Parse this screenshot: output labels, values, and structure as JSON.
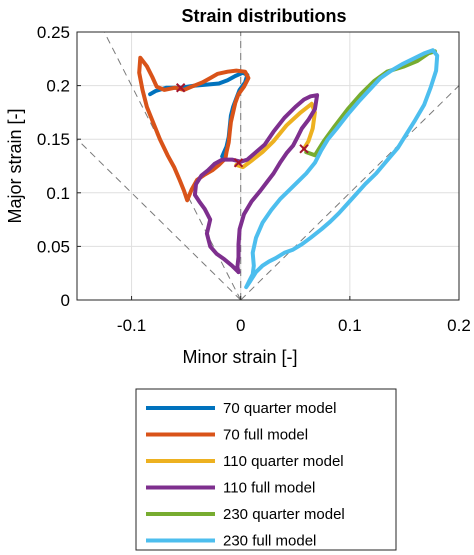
{
  "chart_data": {
    "type": "line",
    "title": "Strain distributions",
    "xlabel": "Minor strain [-]",
    "ylabel": "Major strain [-]",
    "xlim": [
      -0.15,
      0.2
    ],
    "ylim": [
      0,
      0.25
    ],
    "xticks": [
      -0.1,
      0,
      0.1,
      0.2
    ],
    "xtick_labels": [
      "-0.1",
      "0",
      "0.1",
      "0.2"
    ],
    "yticks": [
      0,
      0.05,
      0.1,
      0.15,
      0.2,
      0.25
    ],
    "ytick_labels": [
      "0",
      "0.05",
      "0.1",
      "0.15",
      "0.2",
      "0.25"
    ],
    "grid": true,
    "legend_position": "below",
    "reference_lines": [
      {
        "from": [
          0,
          0
        ],
        "to": [
          -0.125,
          0.25
        ]
      },
      {
        "from": [
          0,
          0
        ],
        "to": [
          -0.15,
          0.15
        ]
      },
      {
        "from": [
          0,
          0
        ],
        "to": [
          0.2,
          0.2
        ]
      },
      {
        "x": 0
      }
    ],
    "markers": [
      {
        "x": -0.055,
        "y": 0.198,
        "symbol": "x",
        "color": "#a2142f"
      },
      {
        "x": -0.002,
        "y": 0.128,
        "symbol": "x",
        "color": "#a2142f"
      },
      {
        "x": 0.058,
        "y": 0.141,
        "symbol": "x",
        "color": "#a2142f"
      }
    ],
    "series": [
      {
        "name": "70 quarter model",
        "color": "#0072bd",
        "points": [
          [
            -0.083,
            0.192
          ],
          [
            -0.078,
            0.195
          ],
          [
            -0.068,
            0.198
          ],
          [
            -0.055,
            0.198
          ],
          [
            -0.042,
            0.2
          ],
          [
            -0.03,
            0.201
          ],
          [
            -0.02,
            0.202
          ],
          [
            -0.012,
            0.205
          ],
          [
            -0.005,
            0.209
          ],
          [
            0.002,
            0.212
          ],
          [
            0.006,
            0.21
          ],
          [
            0.004,
            0.203
          ],
          [
            -0.001,
            0.196
          ],
          [
            -0.004,
            0.188
          ],
          [
            -0.007,
            0.18
          ],
          [
            -0.009,
            0.172
          ],
          [
            -0.01,
            0.162
          ],
          [
            -0.011,
            0.152
          ],
          [
            -0.013,
            0.143
          ],
          [
            -0.017,
            0.134
          ]
        ]
      },
      {
        "name": "70 full model",
        "color": "#d95319",
        "points": [
          [
            -0.014,
            0.132
          ],
          [
            -0.02,
            0.126
          ],
          [
            -0.026,
            0.121
          ],
          [
            -0.033,
            0.117
          ],
          [
            -0.04,
            0.112
          ],
          [
            -0.045,
            0.103
          ],
          [
            -0.049,
            0.093
          ],
          [
            -0.052,
            0.102
          ],
          [
            -0.056,
            0.112
          ],
          [
            -0.061,
            0.124
          ],
          [
            -0.067,
            0.135
          ],
          [
            -0.074,
            0.15
          ],
          [
            -0.08,
            0.165
          ],
          [
            -0.086,
            0.18
          ],
          [
            -0.09,
            0.196
          ],
          [
            -0.093,
            0.212
          ],
          [
            -0.092,
            0.226
          ],
          [
            -0.086,
            0.218
          ],
          [
            -0.081,
            0.208
          ],
          [
            -0.077,
            0.199
          ],
          [
            -0.07,
            0.196
          ],
          [
            -0.06,
            0.198
          ],
          [
            -0.052,
            0.196
          ],
          [
            -0.045,
            0.199
          ],
          [
            -0.035,
            0.203
          ],
          [
            -0.028,
            0.207
          ],
          [
            -0.021,
            0.211
          ],
          [
            -0.012,
            0.213
          ],
          [
            -0.004,
            0.214
          ],
          [
            0.004,
            0.213
          ],
          [
            0.007,
            0.207
          ],
          [
            0.003,
            0.199
          ],
          [
            -0.002,
            0.192
          ],
          [
            -0.005,
            0.184
          ],
          [
            -0.007,
            0.175
          ],
          [
            -0.009,
            0.166
          ],
          [
            -0.01,
            0.157
          ],
          [
            -0.011,
            0.147
          ],
          [
            -0.013,
            0.138
          ],
          [
            -0.014,
            0.132
          ]
        ]
      },
      {
        "name": "110 quarter model",
        "color": "#edb120",
        "points": [
          [
            -0.004,
            0.126
          ],
          [
            0.002,
            0.124
          ],
          [
            0.01,
            0.13
          ],
          [
            0.02,
            0.138
          ],
          [
            0.03,
            0.148
          ],
          [
            0.042,
            0.163
          ],
          [
            0.055,
            0.175
          ],
          [
            0.065,
            0.183
          ],
          [
            0.068,
            0.175
          ],
          [
            0.066,
            0.16
          ],
          [
            0.062,
            0.148
          ],
          [
            0.058,
            0.141
          ]
        ]
      },
      {
        "name": "110 full model",
        "color": "#7e2f8e",
        "points": [
          [
            -0.002,
            0.026
          ],
          [
            -0.008,
            0.032
          ],
          [
            -0.015,
            0.038
          ],
          [
            -0.022,
            0.043
          ],
          [
            -0.028,
            0.05
          ],
          [
            -0.031,
            0.062
          ],
          [
            -0.028,
            0.075
          ],
          [
            -0.033,
            0.085
          ],
          [
            -0.038,
            0.092
          ],
          [
            -0.042,
            0.098
          ],
          [
            -0.041,
            0.108
          ],
          [
            -0.036,
            0.116
          ],
          [
            -0.03,
            0.121
          ],
          [
            -0.024,
            0.127
          ],
          [
            -0.017,
            0.131
          ],
          [
            -0.008,
            0.131
          ],
          [
            0.0,
            0.129
          ],
          [
            0.006,
            0.131
          ],
          [
            0.014,
            0.138
          ],
          [
            0.022,
            0.145
          ],
          [
            0.03,
            0.157
          ],
          [
            0.04,
            0.17
          ],
          [
            0.05,
            0.18
          ],
          [
            0.058,
            0.187
          ],
          [
            0.064,
            0.19
          ],
          [
            0.07,
            0.191
          ],
          [
            0.068,
            0.178
          ],
          [
            0.062,
            0.168
          ],
          [
            0.056,
            0.16
          ],
          [
            0.052,
            0.152
          ],
          [
            0.048,
            0.144
          ],
          [
            0.042,
            0.137
          ],
          [
            0.036,
            0.128
          ],
          [
            0.03,
            0.118
          ],
          [
            0.024,
            0.11
          ],
          [
            0.018,
            0.102
          ],
          [
            0.01,
            0.092
          ],
          [
            0.003,
            0.08
          ],
          [
            -0.001,
            0.066
          ],
          [
            -0.002,
            0.052
          ],
          [
            -0.002,
            0.04
          ],
          [
            -0.003,
            0.031
          ],
          [
            -0.002,
            0.026
          ]
        ]
      },
      {
        "name": "230 quarter model",
        "color": "#77ac30",
        "points": [
          [
            0.06,
            0.138
          ],
          [
            0.068,
            0.135
          ],
          [
            0.076,
            0.148
          ],
          [
            0.086,
            0.162
          ],
          [
            0.098,
            0.178
          ],
          [
            0.11,
            0.192
          ],
          [
            0.122,
            0.204
          ],
          [
            0.134,
            0.213
          ],
          [
            0.15,
            0.218
          ],
          [
            0.162,
            0.223
          ],
          [
            0.172,
            0.23
          ],
          [
            0.178,
            0.232
          ]
        ]
      },
      {
        "name": "230 full model",
        "color": "#4dbeee",
        "points": [
          [
            0.005,
            0.012
          ],
          [
            0.009,
            0.018
          ],
          [
            0.014,
            0.026
          ],
          [
            0.02,
            0.032
          ],
          [
            0.026,
            0.036
          ],
          [
            0.032,
            0.039
          ],
          [
            0.04,
            0.044
          ],
          [
            0.048,
            0.047
          ],
          [
            0.056,
            0.052
          ],
          [
            0.064,
            0.058
          ],
          [
            0.074,
            0.066
          ],
          [
            0.082,
            0.073
          ],
          [
            0.09,
            0.081
          ],
          [
            0.098,
            0.09
          ],
          [
            0.106,
            0.099
          ],
          [
            0.114,
            0.108
          ],
          [
            0.124,
            0.118
          ],
          [
            0.134,
            0.13
          ],
          [
            0.144,
            0.142
          ],
          [
            0.152,
            0.155
          ],
          [
            0.16,
            0.168
          ],
          [
            0.168,
            0.182
          ],
          [
            0.174,
            0.198
          ],
          [
            0.179,
            0.214
          ],
          [
            0.18,
            0.228
          ],
          [
            0.176,
            0.233
          ],
          [
            0.168,
            0.23
          ],
          [
            0.158,
            0.225
          ],
          [
            0.148,
            0.22
          ],
          [
            0.138,
            0.214
          ],
          [
            0.128,
            0.207
          ],
          [
            0.118,
            0.196
          ],
          [
            0.108,
            0.185
          ],
          [
            0.098,
            0.173
          ],
          [
            0.088,
            0.16
          ],
          [
            0.08,
            0.15
          ],
          [
            0.074,
            0.14
          ],
          [
            0.068,
            0.128
          ],
          [
            0.06,
            0.118
          ],
          [
            0.052,
            0.11
          ],
          [
            0.044,
            0.102
          ],
          [
            0.036,
            0.094
          ],
          [
            0.028,
            0.084
          ],
          [
            0.02,
            0.072
          ],
          [
            0.014,
            0.058
          ],
          [
            0.011,
            0.044
          ],
          [
            0.012,
            0.032
          ],
          [
            0.011,
            0.024
          ],
          [
            0.008,
            0.018
          ],
          [
            0.005,
            0.012
          ]
        ]
      }
    ]
  }
}
